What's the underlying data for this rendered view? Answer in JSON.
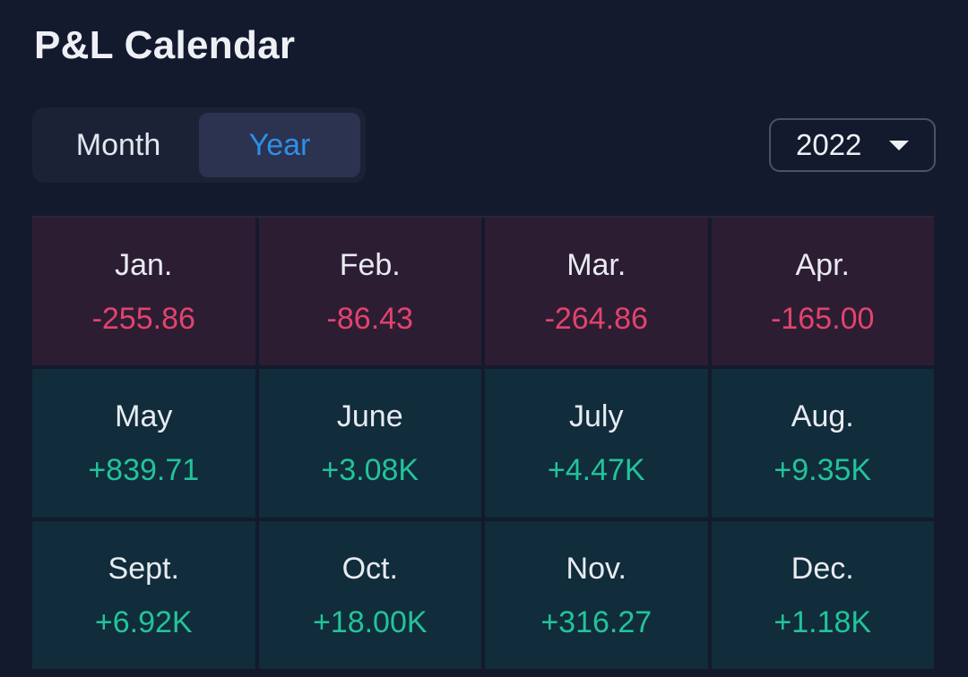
{
  "title": "P&L Calendar",
  "toggle": {
    "month_label": "Month",
    "year_label": "Year",
    "selected": "Year"
  },
  "year_select": {
    "value": "2022",
    "icon": "caret-down-icon"
  },
  "colors": {
    "negative": "#e2436d",
    "positive": "#23c39a",
    "accent": "#2f8fe8"
  },
  "months": [
    {
      "label": "Jan.",
      "value": "-255.86",
      "sign": "neg"
    },
    {
      "label": "Feb.",
      "value": "-86.43",
      "sign": "neg"
    },
    {
      "label": "Mar.",
      "value": "-264.86",
      "sign": "neg"
    },
    {
      "label": "Apr.",
      "value": "-165.00",
      "sign": "neg"
    },
    {
      "label": "May",
      "value": "+839.71",
      "sign": "pos"
    },
    {
      "label": "June",
      "value": "+3.08K",
      "sign": "pos"
    },
    {
      "label": "July",
      "value": "+4.47K",
      "sign": "pos"
    },
    {
      "label": "Aug.",
      "value": "+9.35K",
      "sign": "pos"
    },
    {
      "label": "Sept.",
      "value": "+6.92K",
      "sign": "pos"
    },
    {
      "label": "Oct.",
      "value": "+18.00K",
      "sign": "pos"
    },
    {
      "label": "Nov.",
      "value": "+316.27",
      "sign": "pos"
    },
    {
      "label": "Dec.",
      "value": "+1.18K",
      "sign": "pos"
    }
  ]
}
